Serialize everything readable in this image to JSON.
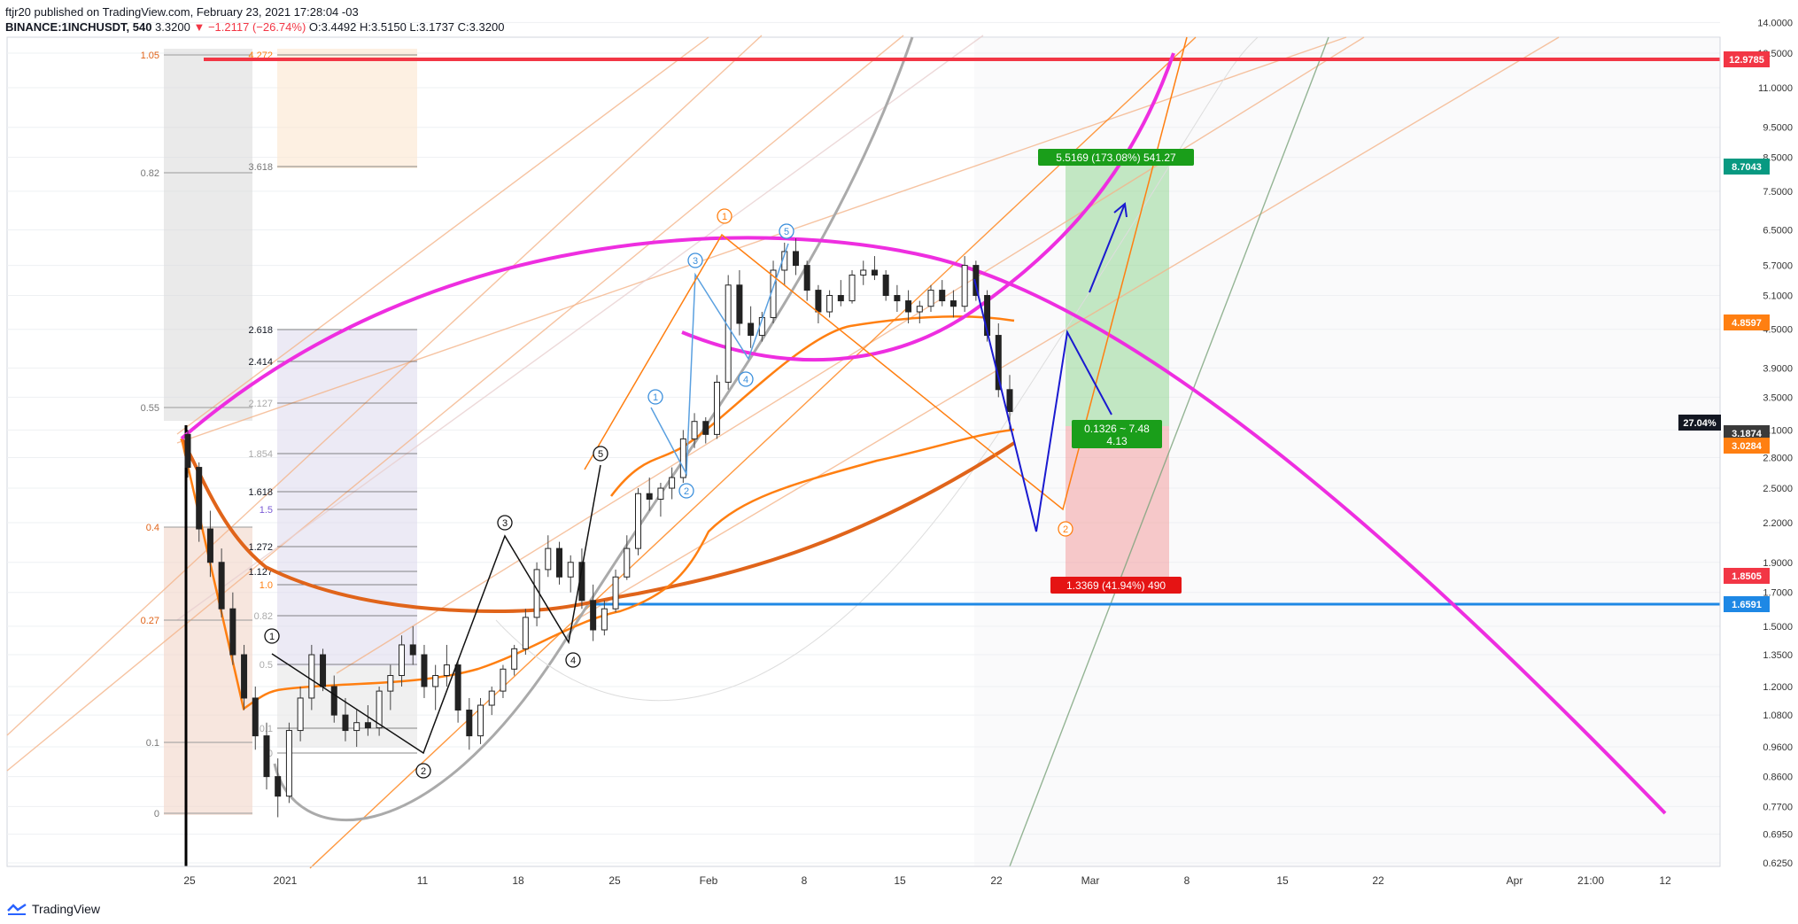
{
  "header": {
    "publish_line": "ftjr20 published on TradingView.com, February 23, 2021 17:28:04 -03",
    "symbol": "BINANCE:1INCHUSDT, 540",
    "last": "3.3200",
    "change": "−1.2117 (−26.74%)",
    "open": "O:3.4492",
    "high": "H:3.5150",
    "low": "L:3.1737",
    "close": "C:3.3200"
  },
  "footer": {
    "brand": "TradingView"
  },
  "colors": {
    "magenta": "#ee2ee0",
    "orange": "#ff7f11",
    "dark_orange": "#e0641a",
    "light_orange": "#f4b48a",
    "blue": "#1e88e5",
    "red": "#f23645",
    "green": "#089981",
    "navy": "#1a1ad0",
    "gray": "#9e9e9e"
  },
  "chart_data": {
    "type": "candlestick-annotated",
    "price_axis": {
      "scale": "log",
      "ticks": [
        "14.0000",
        "12.5000",
        "11.0000",
        "9.5000",
        "8.5000",
        "7.5000",
        "6.5000",
        "5.7000",
        "5.1000",
        "4.5000",
        "3.9000",
        "3.5000",
        "3.1000",
        "2.8000",
        "2.5000",
        "2.2000",
        "1.9000",
        "1.7000",
        "1.5000",
        "1.3500",
        "1.2000",
        "1.0800",
        "0.9600",
        "0.8600",
        "0.7700",
        "0.6950",
        "0.6250"
      ]
    },
    "time_axis": {
      "ticks": [
        "25",
        "2021",
        "11",
        "18",
        "25",
        "Feb",
        "8",
        "15",
        "22",
        "Mar",
        "8",
        "15",
        "22",
        "Apr",
        "21:00",
        "12"
      ]
    },
    "price_labels": [
      {
        "text": "12.9785",
        "color": "#f23645"
      },
      {
        "text": "8.7043",
        "color": "#089981"
      },
      {
        "text": "4.8597",
        "color": "#ff7f11"
      },
      {
        "text": "3.1874",
        "color": "#3a3a3a"
      },
      {
        "text": "3.0284",
        "color": "#ff7f11"
      },
      {
        "text": "1.8505",
        "color": "#f23645"
      },
      {
        "text": "1.6591",
        "color": "#1e88e5"
      }
    ],
    "percent_label": "27.04%",
    "position": {
      "target_label": "5.5169 (173.08%) 541.27",
      "ratio_label_1": "0.1326 ~ 7.48",
      "ratio_label_2": "4.13",
      "stop_label": "1.3369 (41.94%) 490"
    },
    "fib_left": [
      {
        "text": "1.05",
        "color": "#e0641a"
      },
      {
        "text": "0.82",
        "color": "#777777"
      },
      {
        "text": "0.55",
        "color": "#777777"
      },
      {
        "text": "0.4",
        "color": "#e0641a"
      },
      {
        "text": "0.27",
        "color": "#e0641a"
      },
      {
        "text": "0.1",
        "color": "#777777"
      },
      {
        "text": "0",
        "color": "#777777"
      }
    ],
    "fib_ext": [
      {
        "text": "4.272",
        "color": "#ff7f11"
      },
      {
        "text": "3.618",
        "color": "#777777"
      },
      {
        "text": "2.618",
        "color": "#131722"
      },
      {
        "text": "2.414",
        "color": "#131722"
      },
      {
        "text": "2.127",
        "color": "#aaaaaa"
      },
      {
        "text": "1.854",
        "color": "#aaaaaa"
      },
      {
        "text": "1.618",
        "color": "#131722"
      },
      {
        "text": "1.5",
        "color": "#7b5bd6"
      },
      {
        "text": "1.272",
        "color": "#131722"
      },
      {
        "text": "1.127",
        "color": "#131722"
      },
      {
        "text": "1.0",
        "color": "#ff7f11"
      },
      {
        "text": "0.82",
        "color": "#aaaaaa"
      },
      {
        "text": "0.5",
        "color": "#aaaaaa"
      },
      {
        "text": "0.1",
        "color": "#aaaaaa"
      },
      {
        "text": "0",
        "color": "#aaaaaa"
      }
    ],
    "wave_labels": {
      "black": [
        "1",
        "2",
        "3",
        "4",
        "5"
      ],
      "blue": [
        "1",
        "2",
        "3",
        "4",
        "5"
      ],
      "orange": [
        "1",
        "2"
      ]
    },
    "candles": [
      [
        3.05,
        3.1,
        2.6,
        2.7
      ],
      [
        2.7,
        2.75,
        2.05,
        2.15
      ],
      [
        2.15,
        2.3,
        1.8,
        1.9
      ],
      [
        1.9,
        2.0,
        1.55,
        1.6
      ],
      [
        1.6,
        1.7,
        1.3,
        1.35
      ],
      [
        1.35,
        1.4,
        1.1,
        1.15
      ],
      [
        1.15,
        1.2,
        0.95,
        1.0
      ],
      [
        1.0,
        1.05,
        0.82,
        0.86
      ],
      [
        0.86,
        0.92,
        0.74,
        0.8
      ],
      [
        0.8,
        1.05,
        0.78,
        1.02
      ],
      [
        1.02,
        1.2,
        0.98,
        1.15
      ],
      [
        1.15,
        1.4,
        1.1,
        1.35
      ],
      [
        1.35,
        1.38,
        1.18,
        1.2
      ],
      [
        1.2,
        1.25,
        1.05,
        1.08
      ],
      [
        1.08,
        1.15,
        0.98,
        1.02
      ],
      [
        1.02,
        1.1,
        0.96,
        1.05
      ],
      [
        1.05,
        1.12,
        1.0,
        1.03
      ],
      [
        1.03,
        1.2,
        1.0,
        1.18
      ],
      [
        1.18,
        1.3,
        1.1,
        1.25
      ],
      [
        1.25,
        1.45,
        1.2,
        1.4
      ],
      [
        1.4,
        1.5,
        1.3,
        1.35
      ],
      [
        1.35,
        1.4,
        1.15,
        1.2
      ],
      [
        1.2,
        1.3,
        1.1,
        1.25
      ],
      [
        1.25,
        1.4,
        1.2,
        1.3
      ],
      [
        1.3,
        1.32,
        1.05,
        1.1
      ],
      [
        1.1,
        1.15,
        0.95,
        1.0
      ],
      [
        1.0,
        1.15,
        0.97,
        1.12
      ],
      [
        1.12,
        1.2,
        1.08,
        1.18
      ],
      [
        1.18,
        1.3,
        1.15,
        1.28
      ],
      [
        1.28,
        1.4,
        1.25,
        1.38
      ],
      [
        1.38,
        1.6,
        1.35,
        1.55
      ],
      [
        1.55,
        1.9,
        1.5,
        1.85
      ],
      [
        1.85,
        2.1,
        1.8,
        2.0
      ],
      [
        2.0,
        2.05,
        1.75,
        1.8
      ],
      [
        1.8,
        1.95,
        1.7,
        1.9
      ],
      [
        1.9,
        2.0,
        1.6,
        1.65
      ],
      [
        1.65,
        1.75,
        1.42,
        1.48
      ],
      [
        1.48,
        1.65,
        1.45,
        1.6
      ],
      [
        1.6,
        1.85,
        1.58,
        1.8
      ],
      [
        1.8,
        2.1,
        1.78,
        2.0
      ],
      [
        2.0,
        2.5,
        1.95,
        2.45
      ],
      [
        2.45,
        2.6,
        2.3,
        2.4
      ],
      [
        2.4,
        2.55,
        2.25,
        2.5
      ],
      [
        2.5,
        2.7,
        2.4,
        2.6
      ],
      [
        2.6,
        3.1,
        2.55,
        3.0
      ],
      [
        3.0,
        3.3,
        2.9,
        3.2
      ],
      [
        3.2,
        3.25,
        2.95,
        3.05
      ],
      [
        3.05,
        3.8,
        3.0,
        3.7
      ],
      [
        3.7,
        5.5,
        3.6,
        5.3
      ],
      [
        5.3,
        5.6,
        4.4,
        4.6
      ],
      [
        4.6,
        4.9,
        4.2,
        4.4
      ],
      [
        4.4,
        4.8,
        4.3,
        4.7
      ],
      [
        4.7,
        5.8,
        4.6,
        5.6
      ],
      [
        5.6,
        6.2,
        5.3,
        6.0
      ],
      [
        6.0,
        6.3,
        5.5,
        5.7
      ],
      [
        5.7,
        5.8,
        5.0,
        5.2
      ],
      [
        5.2,
        5.3,
        4.6,
        4.8
      ],
      [
        4.8,
        5.2,
        4.7,
        5.1
      ],
      [
        5.1,
        5.4,
        4.9,
        5.0
      ],
      [
        5.0,
        5.6,
        4.95,
        5.5
      ],
      [
        5.5,
        5.8,
        5.3,
        5.6
      ],
      [
        5.6,
        5.9,
        5.4,
        5.5
      ],
      [
        5.5,
        5.6,
        5.0,
        5.1
      ],
      [
        5.1,
        5.3,
        4.8,
        5.0
      ],
      [
        5.0,
        5.2,
        4.6,
        4.8
      ],
      [
        4.8,
        5.0,
        4.6,
        4.9
      ],
      [
        4.9,
        5.3,
        4.8,
        5.2
      ],
      [
        5.2,
        5.4,
        4.9,
        5.0
      ],
      [
        5.0,
        5.2,
        4.7,
        4.9
      ],
      [
        4.9,
        5.9,
        4.8,
        5.7
      ],
      [
        5.7,
        5.8,
        5.0,
        5.1
      ],
      [
        5.1,
        5.2,
        4.3,
        4.4
      ],
      [
        4.4,
        4.6,
        3.5,
        3.6
      ],
      [
        3.6,
        3.8,
        3.1,
        3.32
      ]
    ]
  }
}
